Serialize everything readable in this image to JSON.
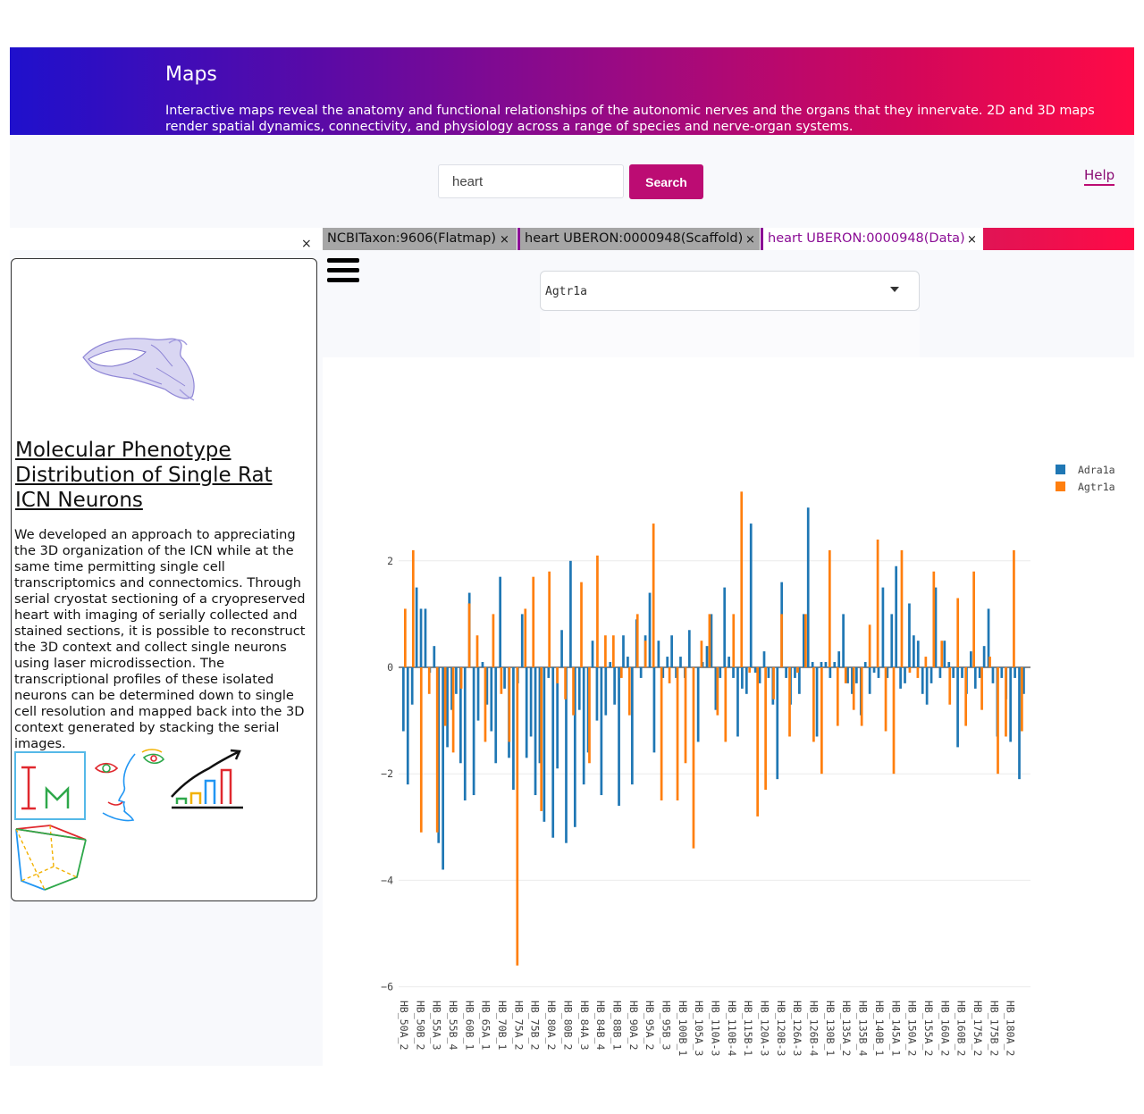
{
  "hero": {
    "title": "Maps",
    "description": "Interactive maps reveal the anatomy and functional relationships of the autonomic nerves and the organs that they innervate. 2D and 3D maps render spatial dynamics, connectivity, and physiology across a range of species and nerve-organ systems."
  },
  "search": {
    "value": "heart",
    "button_label": "Search"
  },
  "help_label": "Help",
  "tabs": [
    {
      "label": "NCBITaxon:9606(Flatmap)",
      "close": "×"
    },
    {
      "label": "heart UBERON:0000948(Scaffold)",
      "close": "×"
    },
    {
      "label": "heart UBERON:0000948(Data)",
      "close": "×"
    }
  ],
  "panel_close": "×",
  "card": {
    "title": "Molecular Phenotype Distribution of Single Rat ICN Neurons",
    "description": "We developed an approach to appreciating the 3D organization of the ICN while at the same time permitting single cell transcriptomics and connectomics. Through serial cryostat sectioning of a cryopreserved heart with imaging of serially collected and stained sections, it is possible to reconstruct the 3D context and collect single neurons using laser microdissection. The transcriptional profiles of these isolated neurons can be determined down to single cell resolution and mapped back into the 3D context generated by stacking the serial images.",
    "viewer_icons": [
      "image-viewer-icon",
      "face-viewer-icon",
      "plot-viewer-icon",
      "scaffold-viewer-icon"
    ],
    "icon_letters": "IM"
  },
  "gene_select": {
    "selected": "Agtr1a"
  },
  "colors": {
    "adra1a": "#1f77b4",
    "agtr1a": "#ff7f0e",
    "brand": "#bc0c73"
  },
  "chart_data": {
    "type": "bar",
    "ylim": [
      -6,
      3.5
    ],
    "yticks": [
      2,
      0,
      -2,
      -4,
      -6
    ],
    "legend": "top-right",
    "grid": true,
    "tick_labels": [
      "HB_50A_2",
      "HB_50B_2",
      "HB_55A_3",
      "HB_55B_4",
      "HB_60B_1",
      "HB_65A_1",
      "HB_70B_1",
      "HB_75A_2",
      "HB_75B_2",
      "HB_80A_2",
      "HB_80B_2",
      "HB_84A_3",
      "HB_84B_4",
      "HB_88B_1",
      "HB_90A_2",
      "HB_95A_2",
      "HB_95B_3",
      "HB_100B_1",
      "HB_105A_3",
      "HB_110A-3",
      "HB_110B-4",
      "HB_115B-1",
      "HB_120A-3",
      "HB_120B-3",
      "HB_126A-3",
      "HB_126B-4",
      "HB_130B_1",
      "HB_135A_2",
      "HB_135B_4",
      "HB_140B_1",
      "HB_145A_1",
      "HB_150A_2",
      "HB_155A_2",
      "HB_160A_2",
      "HB_160B_2",
      "HB_175A_2",
      "HB_175B_2",
      "HB_180A_2"
    ],
    "series": [
      {
        "name": "Adra1a",
        "values": [
          -1.2,
          -2.2,
          1.5,
          1.1,
          -0.1,
          -3.3,
          -0.8,
          -0.3,
          -1.9,
          -0.6,
          -0.9,
          1.4,
          -2.1,
          -0.8,
          -1.5,
          -0.4,
          -2.7,
          -2.0,
          -1.7,
          -1.2,
          -1.4,
          -3.2,
          -3.1,
          -1.4,
          -2.1,
          -2.7,
          -1.0,
          0.8,
          0.8,
          0.6,
          -0.2,
          -0.7,
          -1.4,
          1.3,
          -0.5,
          0.9,
          0.0,
          -0.1,
          0.5,
          0.5,
          -0.1,
          -0.3,
          0.3,
          1.5,
          2.6,
          -0.1,
          -0.2,
          1.5,
          0.6,
          -0.4,
          -0.1,
          -0.5,
          -0.5,
          3.0,
          0.1,
          0.6,
          -0.3,
          -0.4,
          0.0,
          -0.2,
          1.1,
          -0.2,
          -0.2,
          -0.2,
          0.2,
          1.9,
          -0.2,
          -0.2,
          1.6,
          -0.6,
          -1.4,
          -0.1,
          -0.3,
          0.6,
          -1.0,
          1.3,
          -1.4,
          -0.5
        ],
        "detail_values": [
          -1.2,
          -2.2,
          -0.7,
          1.5,
          1.1,
          1.1,
          -0.1,
          0.4,
          -3.3,
          -3.8,
          -1.5,
          -0.8,
          -0.5,
          -1.8,
          -2.5,
          1.4,
          -2.4,
          -1.0,
          0.1,
          -0.7,
          -1.2,
          -1.8,
          1.7,
          -0.4,
          -1.7,
          -2.3,
          -0.3,
          1.0,
          -1.7,
          -1.3,
          -2.4,
          -1.8,
          -2.9,
          -0.2,
          -3.2,
          -1.9,
          0.7,
          -3.3,
          2.0,
          -3.0,
          -0.8,
          -2.2,
          -1.6,
          0.5,
          -1.0,
          -2.4,
          -0.9,
          0.1,
          -0.7,
          -2.6,
          0.6,
          0.2,
          -2.2,
          0.9,
          -0.2,
          0.6,
          1.4,
          -1.6,
          0.5,
          -0.2,
          0.2,
          0.6,
          -0.2,
          0.2,
          -0.2,
          0.7,
          0.0,
          -1.4,
          0.1,
          0.4,
          1.0,
          -0.8,
          -0.2,
          1.5,
          0.2,
          -0.2,
          -1.3,
          -0.4,
          -0.5,
          2.7,
          -0.1,
          -0.3,
          0.3,
          -0.2,
          -0.7,
          -2.1,
          1.6,
          -0.2,
          -0.7,
          -0.2,
          -0.5,
          1.0,
          3.0,
          0.1,
          -1.3,
          0.1,
          0.1,
          -0.2,
          0.1,
          0.3,
          1.0,
          -0.3,
          -0.5,
          -0.3,
          -0.9,
          0.1,
          -0.5,
          -0.1,
          -0.2,
          1.5,
          -0.2,
          1.0,
          1.9,
          -0.4,
          -0.3,
          1.2,
          0.6,
          0.5,
          -0.5,
          -0.7,
          -0.3,
          1.5,
          -0.2,
          0.5,
          0.1,
          -0.2,
          -1.5,
          -0.2,
          -0.5,
          0.3,
          -0.4,
          -0.2,
          0.4,
          1.1,
          -0.3,
          -1.3,
          -0.2,
          -0.6,
          -1.4,
          -0.2,
          -2.1,
          -0.5
        ]
      },
      {
        "name": "Agtr1a",
        "values": [
          1.1,
          2.2,
          -3.1,
          -0.5,
          -3.1,
          -1.1,
          -1.6,
          -0.4,
          1.2,
          0.6,
          -1.4,
          1.0,
          -0.5,
          -1.4,
          -5.6,
          1.1,
          1.7,
          -2.7,
          1.8,
          -0.3,
          -0.6,
          -0.9,
          1.6,
          -1.8,
          2.1,
          0.6,
          0.6,
          -0.2,
          -0.9,
          1.0,
          0.5,
          2.7,
          -2.5,
          -0.3,
          -2.5,
          -1.8,
          -3.4,
          0.5,
          1.0,
          -0.9,
          -1.4,
          1.0,
          3.3,
          -0.1,
          -2.8,
          -2.3,
          -0.6,
          1.0,
          -1.3,
          -0.1,
          1.0,
          -1.4,
          -2.0,
          2.2,
          -1.1,
          -0.3,
          -0.8,
          -1.1,
          0.8,
          2.4,
          -1.2,
          -2.0,
          2.2,
          -0.1,
          -0.2,
          0.2,
          1.8,
          0.5,
          -0.7,
          1.3,
          -1.1,
          1.8,
          -0.8,
          0.2,
          -2.0,
          -1.3,
          2.2,
          -1.2
        ]
      }
    ]
  }
}
